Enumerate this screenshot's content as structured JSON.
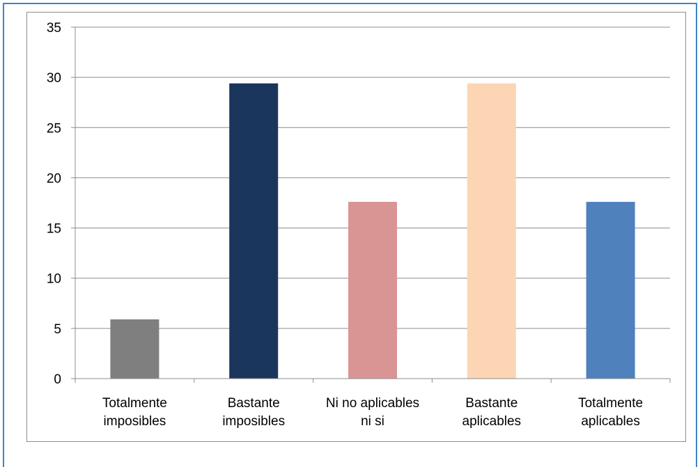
{
  "chart_data": {
    "type": "bar",
    "categories": [
      [
        "Totalmente",
        "imposibles"
      ],
      [
        "Bastante",
        "imposibles"
      ],
      [
        "Ni no aplicables",
        "ni si"
      ],
      [
        "Bastante",
        "aplicables"
      ],
      [
        "Totalmente",
        "aplicables"
      ]
    ],
    "values": [
      5.9,
      29.4,
      17.6,
      29.4,
      17.6
    ],
    "colors": [
      "#7f7f7f",
      "#1b365d",
      "#d99594",
      "#fcd5b5",
      "#4f81bd"
    ],
    "ylim": [
      0,
      35
    ],
    "yticks": [
      0,
      5,
      10,
      15,
      20,
      25,
      30,
      35
    ],
    "grid": true,
    "title": "",
    "xlabel": "",
    "ylabel": ""
  }
}
